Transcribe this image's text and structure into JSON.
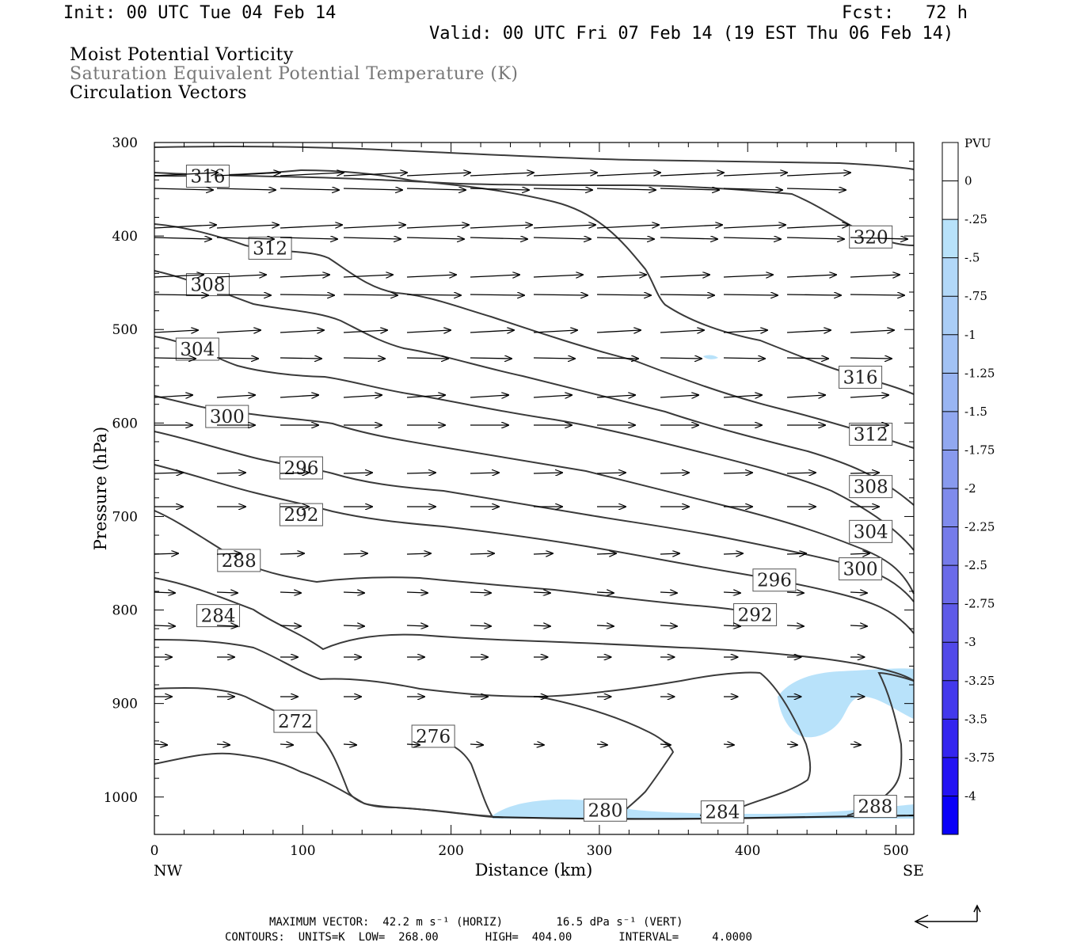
{
  "header": {
    "init": "Init: 00 UTC Tue 04 Feb 14",
    "fcst": "Fcst:   72 h",
    "valid": "Valid: 00 UTC Fri 07 Feb 14 (19 EST Thu 06 Feb 14)"
  },
  "titles": {
    "t1": "Moist Potential Vorticity",
    "t2": "Saturation Equivalent Potential Temperature (K)",
    "t3": "Circulation Vectors"
  },
  "footer": {
    "maxvec": "MAXIMUM VECTOR:  42.2 m s⁻¹ (HORIZ)        16.5 dPa s⁻¹ (VERT)",
    "contours": "CONTOURS:  UNITS=K  LOW=  268.00       HIGH=  404.00       INTERVAL=     4.0000"
  },
  "colors": {
    "contour": "#3a3a3a",
    "shade": "#b8e2fa",
    "vector": "#000000"
  },
  "chart_data": {
    "type": "contour",
    "xlabel": "Distance (km)",
    "ylabel": "Pressure (hPa)",
    "xlim": [
      0,
      512
    ],
    "ylim": [
      1040,
      300
    ],
    "x_ticks": [
      0,
      100,
      200,
      300,
      400,
      500
    ],
    "x_tick_labels": [
      "0",
      "100",
      "200",
      "300",
      "400",
      "500"
    ],
    "y_ticks": [
      300,
      400,
      500,
      600,
      700,
      800,
      900,
      1000
    ],
    "y_tick_labels": [
      "300",
      "400",
      "500",
      "600",
      "700",
      "800",
      "900",
      "1000"
    ],
    "x_end_labels": {
      "left": "NW",
      "right": "SE"
    },
    "colorbar": {
      "unit": "PVU",
      "levels": [
        "0",
        "-.25",
        "-.5",
        "-.75",
        "-1",
        "-1.25",
        "-1.5",
        "-1.75",
        "-2",
        "-2.25",
        "-2.5",
        "-2.75",
        "-3",
        "-3.25",
        "-3.5",
        "-3.75",
        "-4"
      ],
      "colors": [
        "#ffffff",
        "#ffffff",
        "#b8e2fa",
        "#b2d8f8",
        "#aacdf6",
        "#a2c2f4",
        "#99b5f2",
        "#91a8f0",
        "#889aee",
        "#7f8bec",
        "#757bea",
        "#6a6ae9",
        "#5e5ae8",
        "#5149e9",
        "#4338ec",
        "#3425ef",
        "#2312f3",
        "#0a00f8"
      ]
    },
    "contour_labels": [
      {
        "text": "316",
        "x": 36,
        "p": 336
      },
      {
        "text": "312",
        "x": 78,
        "p": 413
      },
      {
        "text": "308",
        "x": 36,
        "p": 452
      },
      {
        "text": "304",
        "x": 29,
        "p": 521
      },
      {
        "text": "300",
        "x": 49,
        "p": 593
      },
      {
        "text": "296",
        "x": 99,
        "p": 648
      },
      {
        "text": "292",
        "x": 99,
        "p": 698
      },
      {
        "text": "288",
        "x": 57,
        "p": 747
      },
      {
        "text": "284",
        "x": 43,
        "p": 806
      },
      {
        "text": "272",
        "x": 95,
        "p": 919
      },
      {
        "text": "276",
        "x": 188,
        "p": 935
      },
      {
        "text": "280",
        "x": 304,
        "p": 1014
      },
      {
        "text": "284",
        "x": 383,
        "p": 1016
      },
      {
        "text": "288",
        "x": 486,
        "p": 1010
      },
      {
        "text": "320",
        "x": 483,
        "p": 401
      },
      {
        "text": "316",
        "x": 476,
        "p": 551
      },
      {
        "text": "312",
        "x": 483,
        "p": 612
      },
      {
        "text": "308",
        "x": 483,
        "p": 668
      },
      {
        "text": "304",
        "x": 483,
        "p": 716
      },
      {
        "text": "300",
        "x": 476,
        "p": 756
      },
      {
        "text": "296",
        "x": 418,
        "p": 768
      },
      {
        "text": "292",
        "x": 405,
        "p": 805
      }
    ]
  }
}
